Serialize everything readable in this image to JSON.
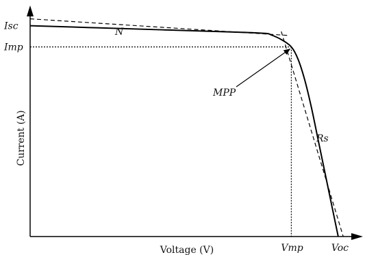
{
  "chart_data": {
    "type": "line",
    "title": "",
    "xlabel": "Voltage (V)",
    "ylabel": "Current (A)",
    "xlim": [
      0,
      1
    ],
    "ylim": [
      0,
      1
    ],
    "grid": false,
    "legend": "none",
    "ticks": {
      "x": [
        {
          "label": "Vmp",
          "value": 0.78
        },
        {
          "label": "Voc",
          "value": 0.92
        }
      ],
      "y": [
        {
          "label": "Isc",
          "value": 0.915
        },
        {
          "label": "Imp",
          "value": 0.823
        }
      ]
    },
    "series": [
      {
        "style": "solid",
        "x": [
          0.0,
          0.2,
          0.4,
          0.6,
          0.7,
          0.72,
          0.75,
          0.78,
          0.8,
          0.82,
          0.84,
          0.86,
          0.88,
          0.9,
          0.92
        ],
        "y": [
          0.915,
          0.906,
          0.897,
          0.888,
          0.882,
          0.875,
          0.855,
          0.823,
          0.77,
          0.68,
          0.56,
          0.42,
          0.28,
          0.14,
          0.0
        ]
      }
    ],
    "guides": [
      {
        "name": "N",
        "x": [
          0.0,
          0.77
        ],
        "y": [
          0.945,
          0.873
        ]
      },
      {
        "name": "Rs",
        "x": [
          0.75,
          0.935
        ],
        "y": [
          0.89,
          0.0
        ]
      }
    ],
    "reference_lines": {
      "horizontal_at_y": 0.823,
      "vertical_at_x": 0.78
    },
    "annotations": [
      {
        "text": "N",
        "target": "N"
      },
      {
        "text": "MPP",
        "point": [
          0.78,
          0.823
        ]
      },
      {
        "text": "Rs",
        "target": "Rs"
      }
    ]
  }
}
